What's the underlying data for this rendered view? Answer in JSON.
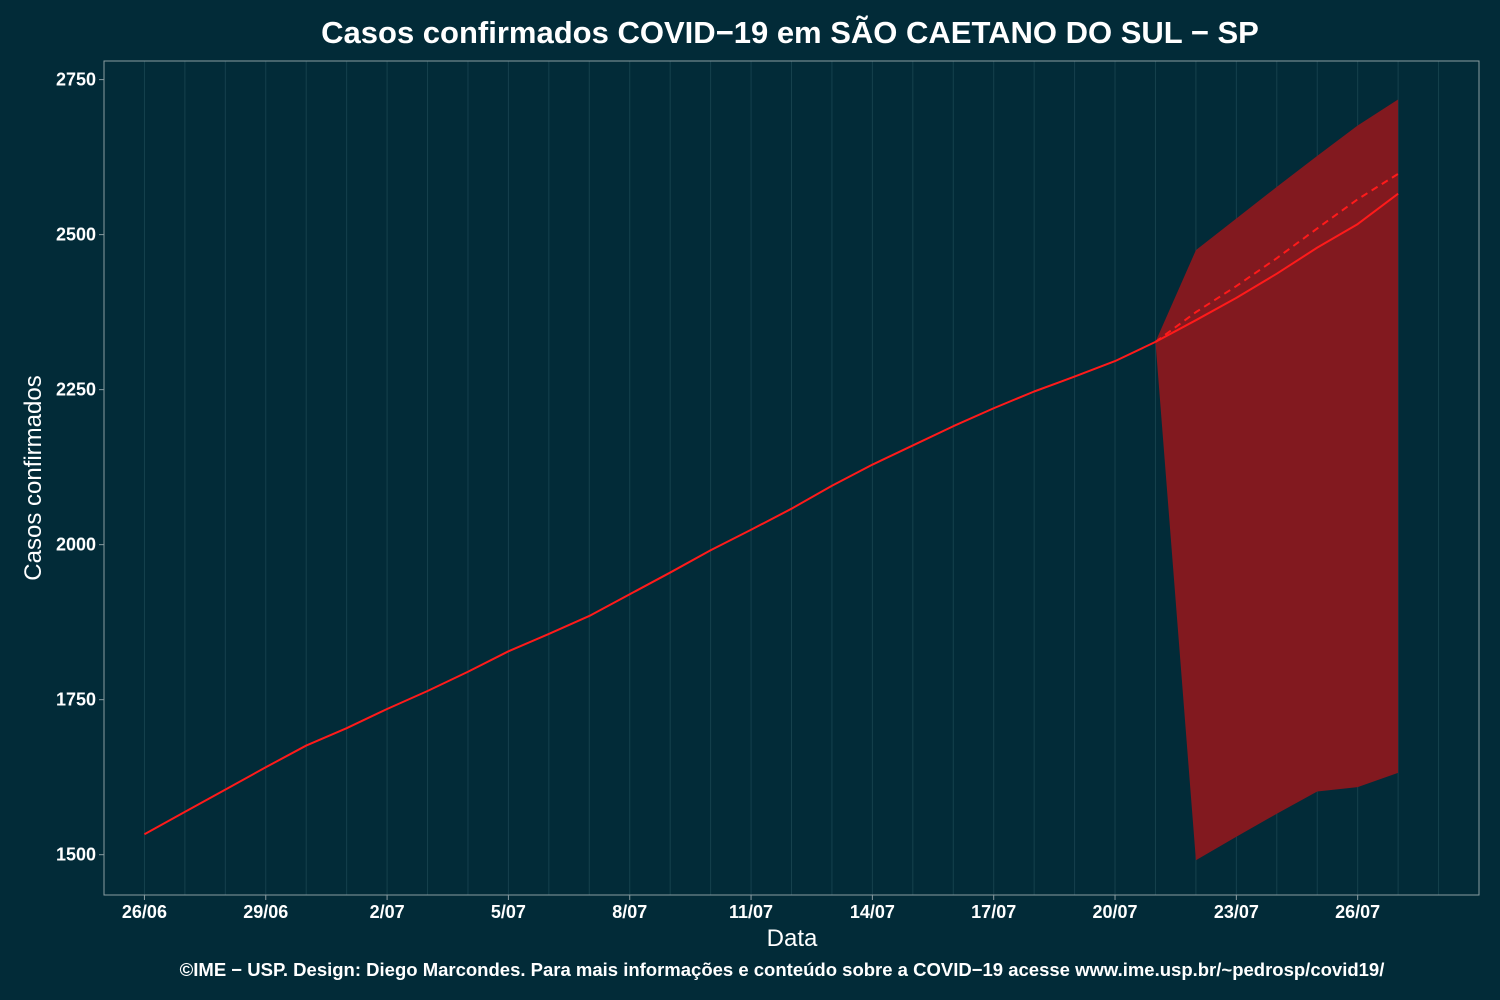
{
  "chart_data": {
    "type": "line",
    "title": "Casos confirmados COVID−19 em SÃO CAETANO DO SUL − SP",
    "xlabel": "Data",
    "ylabel": "Casos confirmados",
    "caption": "©IME − USP. Design: Diego Marcondes. Para mais informações e conteúdo sobre a COVID−19 acesse www.ime.usp.br/~pedrosp/covid19/",
    "x_ticks": [
      "26/06",
      "29/06",
      "2/07",
      "5/07",
      "8/07",
      "11/07",
      "14/07",
      "17/07",
      "20/07",
      "23/07",
      "26/07"
    ],
    "x_tick_dates": [
      "2020-06-26",
      "2020-06-29",
      "2020-07-02",
      "2020-07-05",
      "2020-07-08",
      "2020-07-11",
      "2020-07-14",
      "2020-07-17",
      "2020-07-20",
      "2020-07-23",
      "2020-07-26"
    ],
    "x_range": [
      "2020-06-25",
      "2020-07-29"
    ],
    "y_ticks": [
      1500,
      1750,
      2000,
      2250,
      2500,
      2750
    ],
    "ylim": [
      1435,
      2780
    ],
    "grid": true,
    "series": [
      {
        "role": "observed",
        "style": "solid",
        "color": "#ff1a1a",
        "x": [
          "2020-06-26",
          "2020-06-27",
          "2020-06-28",
          "2020-06-29",
          "2020-06-30",
          "2020-07-01",
          "2020-07-02",
          "2020-07-03",
          "2020-07-04",
          "2020-07-05",
          "2020-07-06",
          "2020-07-07",
          "2020-07-08",
          "2020-07-09",
          "2020-07-10",
          "2020-07-11",
          "2020-07-12",
          "2020-07-13",
          "2020-07-14",
          "2020-07-15",
          "2020-07-16",
          "2020-07-17",
          "2020-07-18",
          "2020-07-19",
          "2020-07-20",
          "2020-07-21"
        ],
        "y": [
          1533,
          1569,
          1605,
          1641,
          1676,
          1704,
          1735,
          1764,
          1795,
          1828,
          1856,
          1885,
          1920,
          1955,
          1991,
          2024,
          2058,
          2095,
          2129,
          2160,
          2191,
          2220,
          2247,
          2271,
          2296,
          2327
        ]
      },
      {
        "role": "prediction",
        "style": "solid",
        "color": "#ff1a1a",
        "x": [
          "2020-07-21",
          "2020-07-22",
          "2020-07-23",
          "2020-07-24",
          "2020-07-25",
          "2020-07-26",
          "2020-07-27"
        ],
        "y": [
          2327,
          2362,
          2398,
          2437,
          2479,
          2517,
          2566
        ]
      },
      {
        "role": "prediction-upper-estimate",
        "style": "dashed",
        "color": "#ff1a1a",
        "x": [
          "2020-07-21",
          "2020-07-22",
          "2020-07-23",
          "2020-07-24",
          "2020-07-25",
          "2020-07-26",
          "2020-07-27"
        ],
        "y": [
          2327,
          2375,
          2417,
          2462,
          2510,
          2557,
          2598
        ]
      }
    ],
    "band": {
      "color": "#82191f",
      "x": [
        "2020-07-21",
        "2020-07-22",
        "2020-07-23",
        "2020-07-24",
        "2020-07-25",
        "2020-07-26",
        "2020-07-27"
      ],
      "upper": [
        2327,
        2475,
        2526,
        2577,
        2627,
        2676,
        2718
      ],
      "lower": [
        2327,
        1491,
        1529,
        1566,
        1602,
        1609,
        1632
      ]
    },
    "colors": {
      "background": "#022b38",
      "grid": "#16414d",
      "axis": "#8a9ca1",
      "text": "#ffffff"
    }
  }
}
